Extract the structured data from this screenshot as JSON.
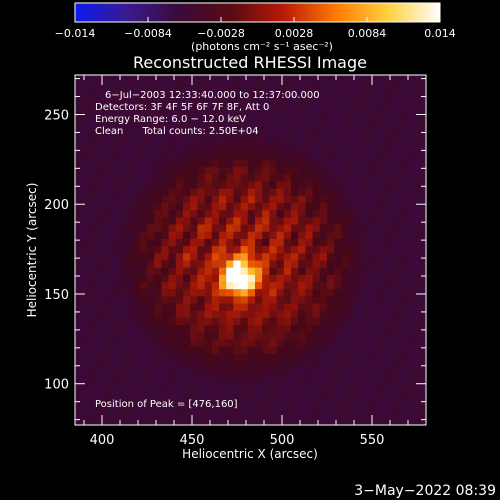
{
  "chart_data": {
    "type": "heatmap",
    "title": "Reconstructed RHESSI Image",
    "xlabel": "Heliocentric X (arcsec)",
    "ylabel": "Heliocentric Y (arcsec)",
    "xlim": [
      385,
      580
    ],
    "ylim": [
      77,
      272
    ],
    "xticks": [
      400,
      450,
      500,
      550
    ],
    "yticks": [
      100,
      150,
      200,
      250
    ],
    "colorbar": {
      "range": [
        -0.014,
        0.014
      ],
      "ticks": [
        -0.014,
        -0.0084,
        -0.0028,
        0.0028,
        0.0084,
        0.014
      ],
      "tick_labels": [
        "−0.014",
        "−0.0084",
        "−0.0028",
        "0.0028",
        "0.0084",
        "0.014"
      ],
      "unit_label": "(photons cm⁻² s⁻¹ asec⁻²)",
      "colors": [
        "#0a1cf0",
        "#3a1a90",
        "#3a0a3a",
        "#5a0a12",
        "#b81a08",
        "#ff7a00",
        "#ffd040",
        "#ffffff"
      ]
    },
    "annotations": [
      "6−Jul−2003 12:33:40.000 to 12:37:00.000",
      "Detectors: 3F 4F 5F 6F 7F 8F, Att 0",
      "Energy Range: 6.0 − 12.0 keV",
      "Clean      Total counts: 2.50E+04"
    ],
    "peak": {
      "label": "Position of Peak = [476,160]",
      "x": 476,
      "y": 160
    },
    "image_params": {
      "source_center": [
        476,
        160
      ],
      "background_center": [
        478,
        170
      ],
      "background_radius_arcsec": 70,
      "stripe_angle_deg": -30,
      "stripe_period_arcsec": 13
    },
    "footer_date": "3−May−2022 08:39"
  }
}
